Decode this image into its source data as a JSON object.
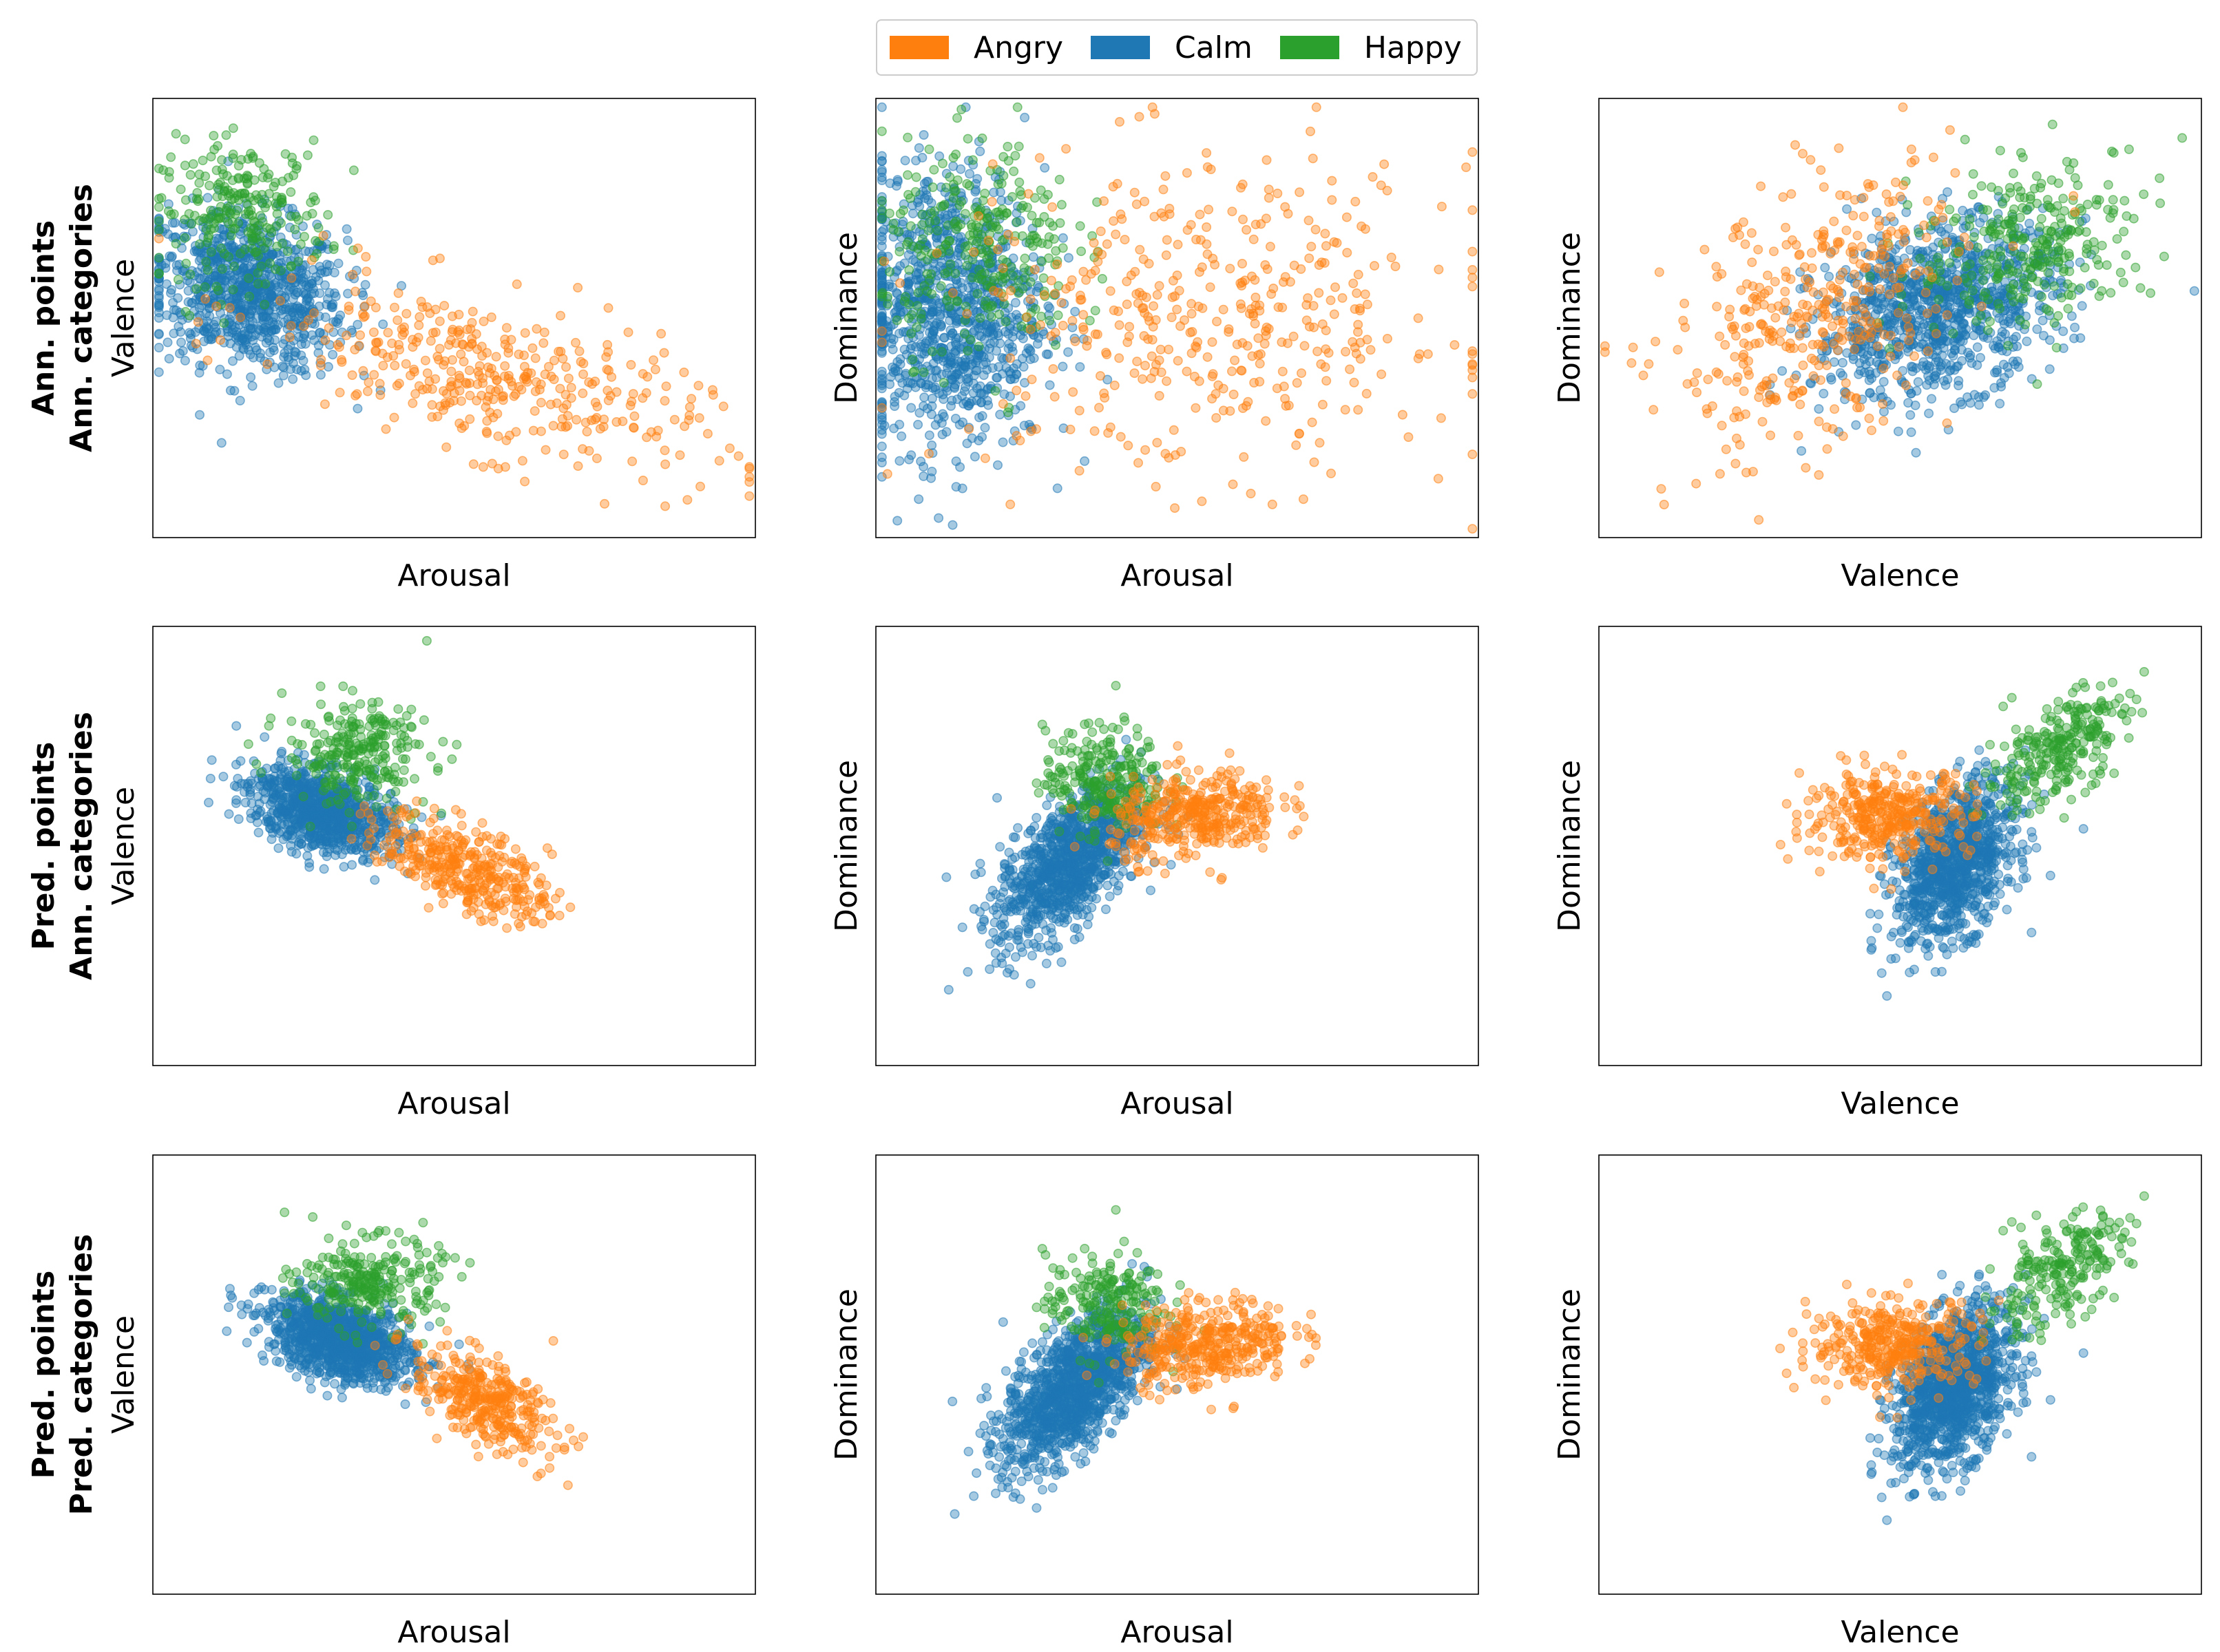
{
  "legend": {
    "items": [
      {
        "label": "Angry",
        "color": "#ff7f0e"
      },
      {
        "label": "Calm",
        "color": "#1f77b4"
      },
      {
        "label": "Happy",
        "color": "#2ca02c"
      }
    ]
  },
  "rows": [
    {
      "label_line1": "Ann. points",
      "label_line2": "Ann. categories"
    },
    {
      "label_line1": "Pred. points",
      "label_line2": "Ann. categories"
    },
    {
      "label_line1": "Pred. points",
      "label_line2": "Pred. categories"
    }
  ],
  "chart_data": [
    {
      "type": "scatter",
      "row": 0,
      "col": 0,
      "xlabel": "Arousal",
      "ylabel": "Valence",
      "xlim": [
        0,
        1
      ],
      "ylim": [
        0,
        1
      ],
      "ticks": "hidden",
      "series": [
        {
          "name": "Calm",
          "centroid": [
            0.16,
            0.56
          ],
          "spread": [
            0.08,
            0.09
          ],
          "count": 900,
          "corr": -0.2
        },
        {
          "name": "Happy",
          "centroid": [
            0.15,
            0.74
          ],
          "spread": [
            0.07,
            0.08
          ],
          "count": 250,
          "corr": 0.0
        },
        {
          "name": "Angry",
          "centroid": [
            0.55,
            0.37
          ],
          "spread": [
            0.18,
            0.11
          ],
          "count": 380,
          "corr": -0.6
        }
      ]
    },
    {
      "type": "scatter",
      "row": 0,
      "col": 1,
      "xlabel": "Arousal",
      "ylabel": "Dominance",
      "xlim": [
        0,
        1
      ],
      "ylim": [
        0,
        1
      ],
      "ticks": "hidden",
      "series": [
        {
          "name": "Calm",
          "centroid": [
            0.12,
            0.52
          ],
          "spread": [
            0.08,
            0.16
          ],
          "count": 1000,
          "corr": 0.0
        },
        {
          "name": "Happy",
          "centroid": [
            0.17,
            0.66
          ],
          "spread": [
            0.08,
            0.12
          ],
          "count": 300,
          "corr": 0.0
        },
        {
          "name": "Angry",
          "centroid": [
            0.55,
            0.5
          ],
          "spread": [
            0.22,
            0.18
          ],
          "count": 430,
          "corr": 0.0
        }
      ]
    },
    {
      "type": "scatter",
      "row": 0,
      "col": 2,
      "xlabel": "Valence",
      "ylabel": "Dominance",
      "xlim": [
        0,
        1
      ],
      "ylim": [
        0,
        1
      ],
      "ticks": "hidden",
      "series": [
        {
          "name": "Calm",
          "centroid": [
            0.56,
            0.52
          ],
          "spread": [
            0.1,
            0.1
          ],
          "count": 1000,
          "corr": 0.3
        },
        {
          "name": "Happy",
          "centroid": [
            0.72,
            0.67
          ],
          "spread": [
            0.1,
            0.1
          ],
          "count": 300,
          "corr": 0.3
        },
        {
          "name": "Angry",
          "centroid": [
            0.36,
            0.5
          ],
          "spread": [
            0.12,
            0.16
          ],
          "count": 380,
          "corr": 0.4
        }
      ]
    },
    {
      "type": "scatter",
      "row": 1,
      "col": 0,
      "xlabel": "Arousal",
      "ylabel": "Valence",
      "xlim": [
        0,
        1
      ],
      "ylim": [
        0,
        1
      ],
      "ticks": "hidden",
      "series": [
        {
          "name": "Calm",
          "centroid": [
            0.28,
            0.58
          ],
          "spread": [
            0.06,
            0.05
          ],
          "count": 900,
          "corr": -0.4
        },
        {
          "name": "Happy",
          "centroid": [
            0.34,
            0.71
          ],
          "spread": [
            0.06,
            0.06
          ],
          "count": 260,
          "corr": 0.0
        },
        {
          "name": "Angry",
          "centroid": [
            0.52,
            0.45
          ],
          "spread": [
            0.07,
            0.06
          ],
          "count": 360,
          "corr": -0.6
        }
      ]
    },
    {
      "type": "scatter",
      "row": 1,
      "col": 1,
      "xlabel": "Arousal",
      "ylabel": "Dominance",
      "xlim": [
        0,
        1
      ],
      "ylim": [
        0,
        1
      ],
      "ticks": "hidden",
      "series": [
        {
          "name": "Calm",
          "centroid": [
            0.32,
            0.46
          ],
          "spread": [
            0.06,
            0.09
          ],
          "count": 1000,
          "corr": 0.6
        },
        {
          "name": "Happy",
          "centroid": [
            0.38,
            0.65
          ],
          "spread": [
            0.05,
            0.06
          ],
          "count": 260,
          "corr": 0.0
        },
        {
          "name": "Angry",
          "centroid": [
            0.53,
            0.57
          ],
          "spread": [
            0.07,
            0.05
          ],
          "count": 380,
          "corr": 0.2
        }
      ]
    },
    {
      "type": "scatter",
      "row": 1,
      "col": 2,
      "xlabel": "Valence",
      "ylabel": "Dominance",
      "xlim": [
        0,
        1
      ],
      "ylim": [
        0,
        1
      ],
      "ticks": "hidden",
      "series": [
        {
          "name": "Calm",
          "centroid": [
            0.59,
            0.46
          ],
          "spread": [
            0.05,
            0.09
          ],
          "count": 1000,
          "corr": 0.4
        },
        {
          "name": "Happy",
          "centroid": [
            0.76,
            0.72
          ],
          "spread": [
            0.06,
            0.07
          ],
          "count": 260,
          "corr": 0.6
        },
        {
          "name": "Angry",
          "centroid": [
            0.48,
            0.57
          ],
          "spread": [
            0.07,
            0.05
          ],
          "count": 360,
          "corr": 0.1
        }
      ]
    },
    {
      "type": "scatter",
      "row": 2,
      "col": 0,
      "xlabel": "Arousal",
      "ylabel": "Valence",
      "xlim": [
        0,
        1
      ],
      "ylim": [
        0,
        1
      ],
      "ticks": "hidden",
      "series": [
        {
          "name": "Calm",
          "centroid": [
            0.31,
            0.58
          ],
          "spread": [
            0.06,
            0.05
          ],
          "count": 1100,
          "corr": -0.4
        },
        {
          "name": "Happy",
          "centroid": [
            0.36,
            0.71
          ],
          "spread": [
            0.06,
            0.05
          ],
          "count": 260,
          "corr": 0.0
        },
        {
          "name": "Angry",
          "centroid": [
            0.55,
            0.44
          ],
          "spread": [
            0.06,
            0.06
          ],
          "count": 340,
          "corr": -0.6
        }
      ]
    },
    {
      "type": "scatter",
      "row": 2,
      "col": 1,
      "xlabel": "Arousal",
      "ylabel": "Dominance",
      "xlim": [
        0,
        1
      ],
      "ylim": [
        0,
        1
      ],
      "ticks": "hidden",
      "series": [
        {
          "name": "Calm",
          "centroid": [
            0.33,
            0.47
          ],
          "spread": [
            0.06,
            0.09
          ],
          "count": 1200,
          "corr": 0.6
        },
        {
          "name": "Happy",
          "centroid": [
            0.38,
            0.66
          ],
          "spread": [
            0.05,
            0.06
          ],
          "count": 220,
          "corr": 0.0
        },
        {
          "name": "Angry",
          "centroid": [
            0.55,
            0.57
          ],
          "spread": [
            0.07,
            0.05
          ],
          "count": 380,
          "corr": 0.2
        }
      ]
    },
    {
      "type": "scatter",
      "row": 2,
      "col": 2,
      "xlabel": "Valence",
      "ylabel": "Dominance",
      "xlim": [
        0,
        1
      ],
      "ylim": [
        0,
        1
      ],
      "ticks": "hidden",
      "series": [
        {
          "name": "Calm",
          "centroid": [
            0.59,
            0.47
          ],
          "spread": [
            0.05,
            0.09
          ],
          "count": 1200,
          "corr": 0.4
        },
        {
          "name": "Happy",
          "centroid": [
            0.76,
            0.73
          ],
          "spread": [
            0.06,
            0.07
          ],
          "count": 220,
          "corr": 0.6
        },
        {
          "name": "Angry",
          "centroid": [
            0.49,
            0.57
          ],
          "spread": [
            0.07,
            0.05
          ],
          "count": 360,
          "corr": 0.1
        }
      ]
    }
  ]
}
